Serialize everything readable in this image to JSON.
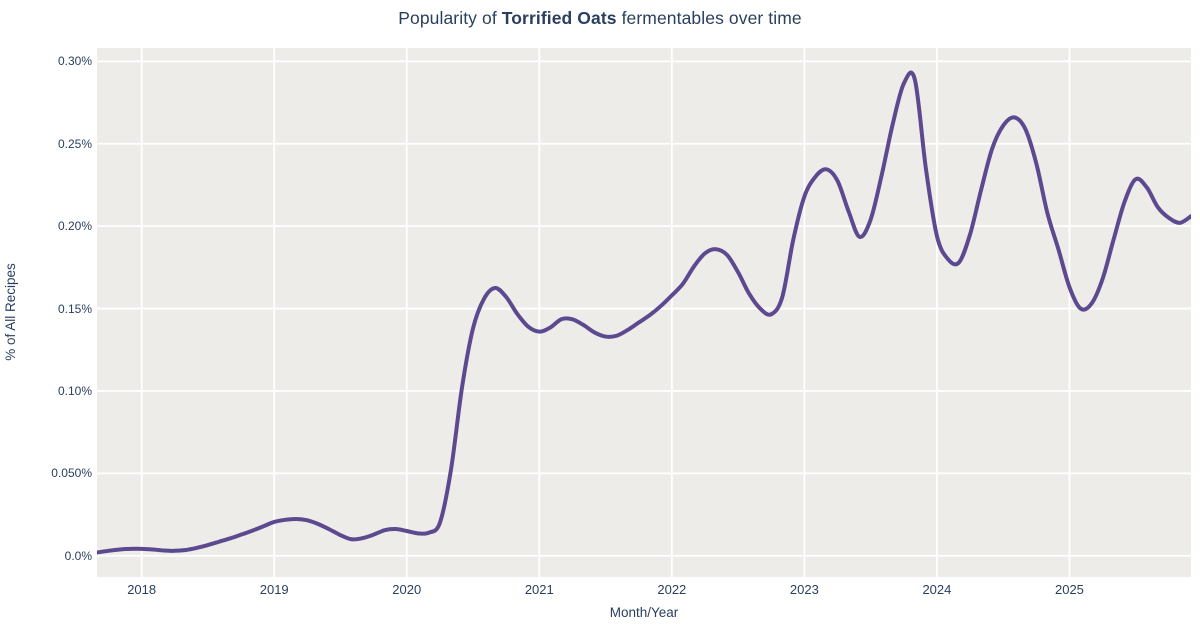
{
  "page": {
    "background": "#ffffff"
  },
  "chart_data": {
    "type": "line",
    "title": {
      "prefix": "Popularity of ",
      "highlight": "Torrified Oats",
      "suffix": " fermentables over time"
    },
    "xlabel": "Month/Year",
    "ylabel": "% of All Recipes",
    "legend": "none",
    "grid": true,
    "x_axis": {
      "tick_labels": [
        "2018",
        "2019",
        "2020",
        "2021",
        "2022",
        "2023",
        "2024",
        "2025"
      ],
      "tick_years": [
        2018,
        2019,
        2020,
        2021,
        2022,
        2023,
        2024,
        2025
      ],
      "range_years": [
        2017.663,
        2025.917
      ]
    },
    "y_axis": {
      "tick_labels": [
        "0.0%",
        "0.050%",
        "0.10%",
        "0.15%",
        "0.20%",
        "0.25%",
        "0.30%"
      ],
      "tick_values": [
        0,
        0.05,
        0.1,
        0.15,
        0.2,
        0.25,
        0.3
      ],
      "range": [
        -0.0129,
        0.3081
      ]
    },
    "series": [
      {
        "name": "Torrified Oats",
        "unit": "% of all recipes",
        "frequency": "monthly",
        "start": {
          "year": 2017,
          "month": 9
        },
        "values": [
          0.002,
          0.003,
          0.0038,
          0.0042,
          0.0042,
          0.0038,
          0.0032,
          0.003,
          0.0035,
          0.0048,
          0.0065,
          0.0085,
          0.0105,
          0.0128,
          0.0152,
          0.0178,
          0.0205,
          0.0218,
          0.0223,
          0.0215,
          0.0192,
          0.016,
          0.0125,
          0.01,
          0.0107,
          0.0128,
          0.0155,
          0.0162,
          0.015,
          0.0136,
          0.014,
          0.02,
          0.052,
          0.102,
          0.138,
          0.156,
          0.1625,
          0.157,
          0.1468,
          0.139,
          0.136,
          0.1385,
          0.1435,
          0.1435,
          0.14,
          0.1355,
          0.133,
          0.1335,
          0.137,
          0.1415,
          0.146,
          0.1515,
          0.158,
          0.165,
          0.1755,
          0.1835,
          0.186,
          0.1825,
          0.172,
          0.159,
          0.15,
          0.1465,
          0.157,
          0.192,
          0.218,
          0.23,
          0.2345,
          0.2275,
          0.209,
          0.1935,
          0.204,
          0.231,
          0.262,
          0.2865,
          0.289,
          0.235,
          0.194,
          0.18,
          0.178,
          0.195,
          0.222,
          0.247,
          0.261,
          0.266,
          0.259,
          0.238,
          0.208,
          0.186,
          0.163,
          0.15,
          0.153,
          0.168,
          0.192,
          0.215,
          0.2285,
          0.2235,
          0.2115,
          0.205,
          0.202,
          0.206
        ]
      }
    ],
    "colors": {
      "line": "#5d498f",
      "plot_background": "#eeece9",
      "gridline": "#ffffff",
      "text": "#2a3f5f"
    }
  }
}
